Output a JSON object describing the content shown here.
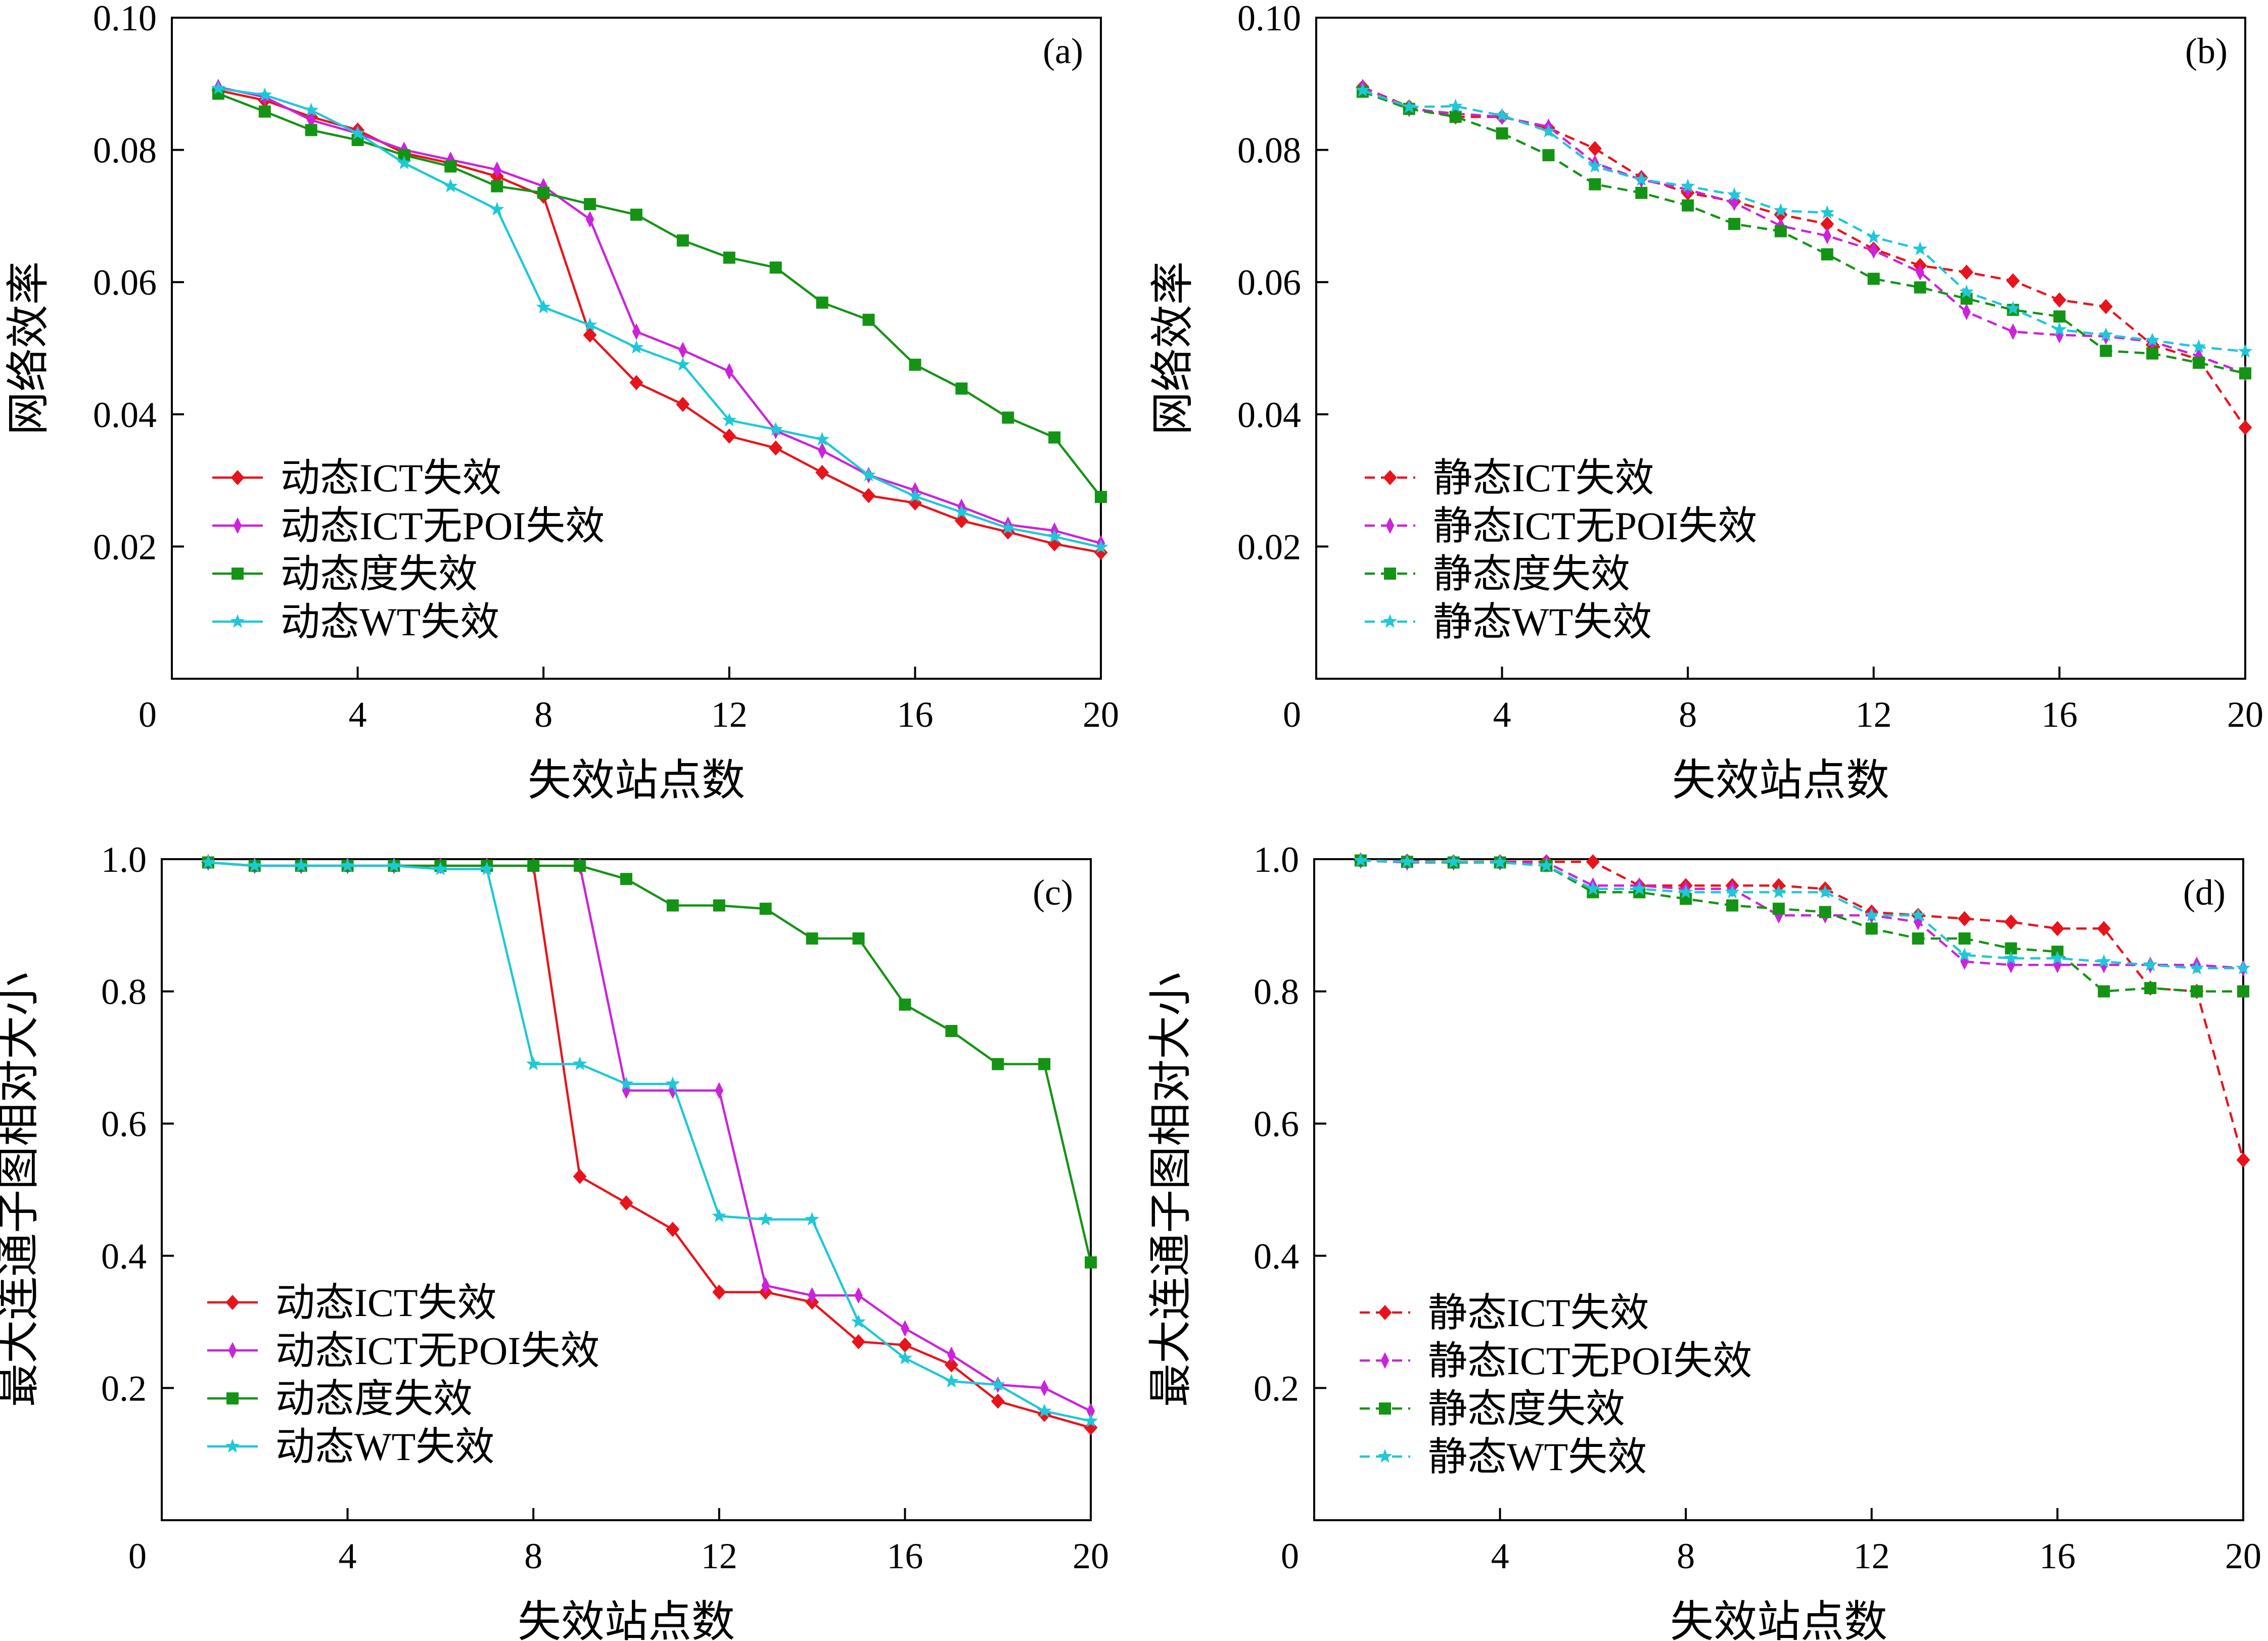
{
  "chart_data": [
    {
      "type": "line",
      "panel_label": "(a)",
      "xlabel": "失效站点数",
      "ylabel": "网络效率",
      "xlim": [
        0,
        20
      ],
      "ylim": [
        0,
        0.1
      ],
      "xticks": [
        "0",
        "4",
        "8",
        "12",
        "16",
        "20"
      ],
      "yticks": [
        "0",
        "0.02",
        "0.04",
        "0.06",
        "0.08",
        "0.10"
      ],
      "legend_position": "lower-left",
      "series": [
        {
          "name": "动态ICT失效",
          "color": "#e8141c",
          "marker": "diamond",
          "dashed": false,
          "x": [
            1,
            2,
            3,
            4,
            5,
            6,
            7,
            8,
            9,
            10,
            11,
            12,
            13,
            14,
            15,
            16,
            17,
            18,
            19,
            20
          ],
          "y": [
            0.089,
            0.0875,
            0.085,
            0.083,
            0.0795,
            0.078,
            0.076,
            0.073,
            0.052,
            0.0448,
            0.0415,
            0.0367,
            0.0349,
            0.0312,
            0.0277,
            0.0266,
            0.0239,
            0.0222,
            0.0204,
            0.0191
          ]
        },
        {
          "name": "动态ICT无POI失效",
          "color": "#cc22dd",
          "marker": "thin-diamond",
          "dashed": false,
          "x": [
            1,
            2,
            3,
            4,
            5,
            6,
            7,
            8,
            9,
            10,
            11,
            12,
            13,
            14,
            15,
            16,
            17,
            18,
            19,
            20
          ],
          "y": [
            0.0895,
            0.088,
            0.0845,
            0.0825,
            0.08,
            0.0785,
            0.077,
            0.0745,
            0.0695,
            0.0525,
            0.0497,
            0.0465,
            0.0375,
            0.0345,
            0.0308,
            0.0285,
            0.026,
            0.0233,
            0.0224,
            0.0205
          ]
        },
        {
          "name": "动态度失效",
          "color": "#149414",
          "marker": "square",
          "dashed": false,
          "x": [
            1,
            2,
            3,
            4,
            5,
            6,
            7,
            8,
            9,
            10,
            11,
            12,
            13,
            14,
            15,
            16,
            17,
            18,
            19,
            20
          ],
          "y": [
            0.0885,
            0.0858,
            0.083,
            0.0815,
            0.0792,
            0.0775,
            0.0745,
            0.0735,
            0.0718,
            0.0702,
            0.0663,
            0.0637,
            0.0622,
            0.0569,
            0.0543,
            0.0475,
            0.0439,
            0.0395,
            0.0365,
            0.0275
          ]
        },
        {
          "name": "动态WT失效",
          "color": "#1ec8d8",
          "marker": "star",
          "dashed": false,
          "x": [
            1,
            2,
            3,
            4,
            5,
            6,
            7,
            8,
            9,
            10,
            11,
            12,
            13,
            14,
            15,
            16,
            17,
            18,
            19,
            20
          ],
          "y": [
            0.0893,
            0.0883,
            0.086,
            0.0825,
            0.078,
            0.0745,
            0.071,
            0.0562,
            0.0535,
            0.0501,
            0.0475,
            0.0391,
            0.0377,
            0.0362,
            0.0308,
            0.0276,
            0.0252,
            0.0228,
            0.0215,
            0.0199
          ]
        }
      ]
    },
    {
      "type": "line",
      "panel_label": "(b)",
      "xlabel": "失效站点数",
      "ylabel": "网络效率",
      "xlim": [
        0,
        20
      ],
      "ylim": [
        0,
        0.1
      ],
      "xticks": [
        "0",
        "4",
        "8",
        "12",
        "16",
        "20"
      ],
      "yticks": [
        "0",
        "0.02",
        "0.04",
        "0.06",
        "0.08",
        "0.10"
      ],
      "legend_position": "lower-left",
      "series": [
        {
          "name": "静态ICT失效",
          "color": "#e8141c",
          "marker": "diamond",
          "dashed": true,
          "x": [
            1,
            2,
            3,
            4,
            5,
            6,
            7,
            8,
            9,
            10,
            11,
            12,
            13,
            14,
            15,
            16,
            17,
            18,
            19,
            20
          ],
          "y": [
            0.0895,
            0.0865,
            0.085,
            0.085,
            0.0833,
            0.0802,
            0.0758,
            0.0735,
            0.0722,
            0.0702,
            0.0688,
            0.065,
            0.0625,
            0.0615,
            0.0602,
            0.0573,
            0.0563,
            0.0505,
            0.0483,
            0.038
          ]
        },
        {
          "name": "静态ICT无POI失效",
          "color": "#cc22dd",
          "marker": "thin-diamond",
          "dashed": true,
          "x": [
            1,
            2,
            3,
            4,
            5,
            6,
            7,
            8,
            9,
            10,
            11,
            12,
            13,
            14,
            15,
            16,
            17,
            18,
            19,
            20
          ],
          "y": [
            0.0895,
            0.0862,
            0.0855,
            0.085,
            0.0835,
            0.078,
            0.0755,
            0.074,
            0.072,
            0.0685,
            0.067,
            0.0648,
            0.0615,
            0.0555,
            0.0525,
            0.052,
            0.0518,
            0.051,
            0.0488,
            0.0462
          ]
        },
        {
          "name": "静态度失效",
          "color": "#149414",
          "marker": "square",
          "dashed": true,
          "x": [
            1,
            2,
            3,
            4,
            5,
            6,
            7,
            8,
            9,
            10,
            11,
            12,
            13,
            14,
            15,
            16,
            17,
            18,
            19,
            20
          ],
          "y": [
            0.0888,
            0.0862,
            0.085,
            0.0825,
            0.0792,
            0.0748,
            0.0735,
            0.0716,
            0.0688,
            0.0677,
            0.0642,
            0.0605,
            0.0592,
            0.0575,
            0.0558,
            0.0548,
            0.0496,
            0.0492,
            0.0478,
            0.0462
          ]
        },
        {
          "name": "静态WT失效",
          "color": "#1ec8d8",
          "marker": "star",
          "dashed": true,
          "x": [
            1,
            2,
            3,
            4,
            5,
            6,
            7,
            8,
            9,
            10,
            11,
            12,
            13,
            14,
            15,
            16,
            17,
            18,
            19,
            20
          ],
          "y": [
            0.089,
            0.0865,
            0.0866,
            0.0852,
            0.0828,
            0.0775,
            0.0755,
            0.0745,
            0.0732,
            0.0708,
            0.0705,
            0.0668,
            0.065,
            0.0585,
            0.056,
            0.0528,
            0.052,
            0.0512,
            0.0502,
            0.0495
          ]
        }
      ]
    },
    {
      "type": "line",
      "panel_label": "(c)",
      "xlabel": "失效站点数",
      "ylabel": "最大连通子图相对大小",
      "xlim": [
        0,
        20
      ],
      "ylim": [
        0,
        1.0
      ],
      "xticks": [
        "0",
        "4",
        "8",
        "12",
        "16",
        "20"
      ],
      "yticks": [
        "0",
        "0.2",
        "0.4",
        "0.6",
        "0.8",
        "1.0"
      ],
      "legend_position": "lower-left",
      "series": [
        {
          "name": "动态ICT失效",
          "color": "#e8141c",
          "marker": "diamond",
          "dashed": false,
          "x": [
            1,
            2,
            3,
            4,
            5,
            6,
            7,
            8,
            9,
            10,
            11,
            12,
            13,
            14,
            15,
            16,
            17,
            18,
            19,
            20
          ],
          "y": [
            0.995,
            0.99,
            0.99,
            0.99,
            0.99,
            0.99,
            0.99,
            0.99,
            0.52,
            0.48,
            0.44,
            0.345,
            0.345,
            0.33,
            0.27,
            0.265,
            0.235,
            0.18,
            0.16,
            0.14
          ]
        },
        {
          "name": "动态ICT无POI失效",
          "color": "#cc22dd",
          "marker": "thin-diamond",
          "dashed": false,
          "x": [
            1,
            2,
            3,
            4,
            5,
            6,
            7,
            8,
            9,
            10,
            11,
            12,
            13,
            14,
            15,
            16,
            17,
            18,
            19,
            20
          ],
          "y": [
            0.995,
            0.99,
            0.99,
            0.99,
            0.99,
            0.99,
            0.99,
            0.99,
            0.99,
            0.65,
            0.65,
            0.65,
            0.355,
            0.34,
            0.34,
            0.29,
            0.25,
            0.205,
            0.2,
            0.165
          ]
        },
        {
          "name": "动态度失效",
          "color": "#149414",
          "marker": "square",
          "dashed": false,
          "x": [
            1,
            2,
            3,
            4,
            5,
            6,
            7,
            8,
            9,
            10,
            11,
            12,
            13,
            14,
            15,
            16,
            17,
            18,
            19,
            20
          ],
          "y": [
            0.995,
            0.99,
            0.99,
            0.99,
            0.99,
            0.99,
            0.99,
            0.99,
            0.99,
            0.97,
            0.93,
            0.93,
            0.925,
            0.88,
            0.88,
            0.78,
            0.74,
            0.69,
            0.69,
            0.39
          ]
        },
        {
          "name": "动态WT失效",
          "color": "#1ec8d8",
          "marker": "star",
          "dashed": false,
          "x": [
            1,
            2,
            3,
            4,
            5,
            6,
            7,
            8,
            9,
            10,
            11,
            12,
            13,
            14,
            15,
            16,
            17,
            18,
            19,
            20
          ],
          "y": [
            0.995,
            0.99,
            0.99,
            0.99,
            0.99,
            0.985,
            0.985,
            0.69,
            0.69,
            0.66,
            0.66,
            0.46,
            0.455,
            0.455,
            0.3,
            0.245,
            0.21,
            0.205,
            0.165,
            0.15
          ]
        }
      ]
    },
    {
      "type": "line",
      "panel_label": "(d)",
      "xlabel": "失效站点数",
      "ylabel": "最大连通子图相对大小",
      "xlim": [
        0,
        20
      ],
      "ylim": [
        0,
        1.0
      ],
      "xticks": [
        "0",
        "4",
        "8",
        "12",
        "16",
        "20"
      ],
      "yticks": [
        "0",
        "0.2",
        "0.4",
        "0.6",
        "0.8",
        "1.0"
      ],
      "legend_position": "lower-left",
      "series": [
        {
          "name": "静态ICT失效",
          "color": "#e8141c",
          "marker": "diamond",
          "dashed": true,
          "x": [
            1,
            2,
            3,
            4,
            5,
            6,
            7,
            8,
            9,
            10,
            11,
            12,
            13,
            14,
            15,
            16,
            17,
            18,
            19,
            20
          ],
          "y": [
            0.998,
            0.997,
            0.996,
            0.996,
            0.996,
            0.996,
            0.96,
            0.96,
            0.96,
            0.96,
            0.955,
            0.92,
            0.915,
            0.91,
            0.905,
            0.895,
            0.895,
            0.805,
            0.8,
            0.545
          ]
        },
        {
          "name": "静态ICT无POI失效",
          "color": "#cc22dd",
          "marker": "thin-diamond",
          "dashed": true,
          "x": [
            1,
            2,
            3,
            4,
            5,
            6,
            7,
            8,
            9,
            10,
            11,
            12,
            13,
            14,
            15,
            16,
            17,
            18,
            19,
            20
          ],
          "y": [
            0.998,
            0.995,
            0.995,
            0.995,
            0.995,
            0.96,
            0.96,
            0.955,
            0.955,
            0.915,
            0.915,
            0.915,
            0.905,
            0.845,
            0.84,
            0.84,
            0.84,
            0.84,
            0.84,
            0.835
          ]
        },
        {
          "name": "静态度失效",
          "color": "#149414",
          "marker": "square",
          "dashed": true,
          "x": [
            1,
            2,
            3,
            4,
            5,
            6,
            7,
            8,
            9,
            10,
            11,
            12,
            13,
            14,
            15,
            16,
            17,
            18,
            19,
            20
          ],
          "y": [
            0.998,
            0.996,
            0.995,
            0.995,
            0.99,
            0.95,
            0.95,
            0.94,
            0.93,
            0.925,
            0.92,
            0.895,
            0.88,
            0.88,
            0.865,
            0.86,
            0.8,
            0.805,
            0.8,
            0.8
          ]
        },
        {
          "name": "静态WT失效",
          "color": "#1ec8d8",
          "marker": "star",
          "dashed": true,
          "x": [
            1,
            2,
            3,
            4,
            5,
            6,
            7,
            8,
            9,
            10,
            11,
            12,
            13,
            14,
            15,
            16,
            17,
            18,
            19,
            20
          ],
          "y": [
            0.998,
            0.996,
            0.996,
            0.995,
            0.99,
            0.955,
            0.955,
            0.95,
            0.95,
            0.95,
            0.95,
            0.915,
            0.915,
            0.855,
            0.85,
            0.85,
            0.845,
            0.84,
            0.835,
            0.835
          ]
        }
      ]
    }
  ]
}
